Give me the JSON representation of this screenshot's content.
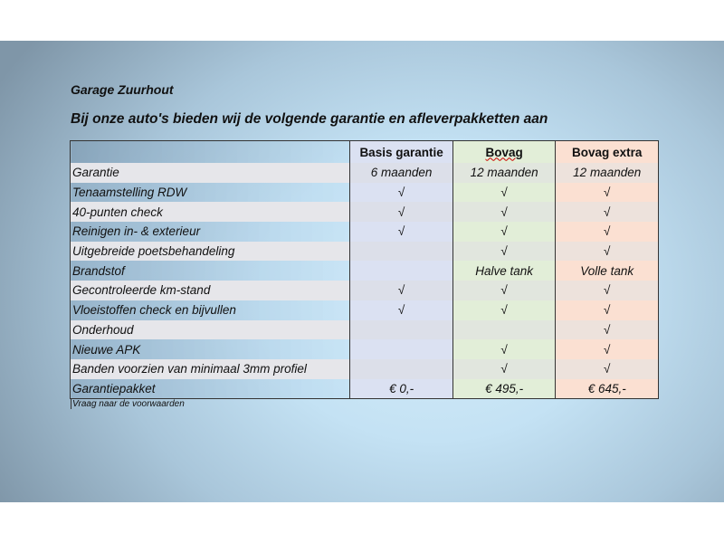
{
  "title": "Garage Zuurhout",
  "subtitle": "Bij onze auto's bieden wij de volgende garantie en afleverpakketten aan",
  "columns": [
    "",
    "Basis garantie",
    "Bovag",
    "Bovag extra"
  ],
  "rows": [
    {
      "label": "Garantie",
      "values": [
        "6 maanden",
        "12 maanden",
        "12 maanden"
      ]
    },
    {
      "label": "Tenaamstelling RDW",
      "values": [
        "√",
        "√",
        "√"
      ]
    },
    {
      "label": "40-punten check",
      "values": [
        "√",
        "√",
        "√"
      ]
    },
    {
      "label": "Reinigen in- & exterieur",
      "values": [
        "√",
        "√",
        "√"
      ]
    },
    {
      "label": "Uitgebreide poetsbehandeling",
      "values": [
        "",
        "√",
        "√"
      ]
    },
    {
      "label": "Brandstof",
      "values": [
        "",
        "Halve tank",
        "Volle tank"
      ]
    },
    {
      "label": "Gecontroleerde km-stand",
      "values": [
        "√",
        "√",
        "√"
      ]
    },
    {
      "label": "Vloeistoffen check en bijvullen",
      "values": [
        "√",
        "√",
        "√"
      ]
    },
    {
      "label": "Onderhoud",
      "values": [
        "",
        "",
        "√"
      ]
    },
    {
      "label": "Nieuwe APK",
      "values": [
        "",
        "√",
        "√"
      ]
    },
    {
      "label": "Banden voorzien van minimaal 3mm profiel",
      "values": [
        "",
        "√",
        "√"
      ]
    },
    {
      "label": "Garantiepakket",
      "values": [
        "€ 0,-",
        "€ 495,-",
        "€ 645,-"
      ]
    }
  ],
  "note": "Vraag naar de voorwaarden",
  "colors": {
    "basis": "#dbe1f2",
    "bovag": "#e2eed8",
    "bovag_extra": "#fbe0d2"
  }
}
